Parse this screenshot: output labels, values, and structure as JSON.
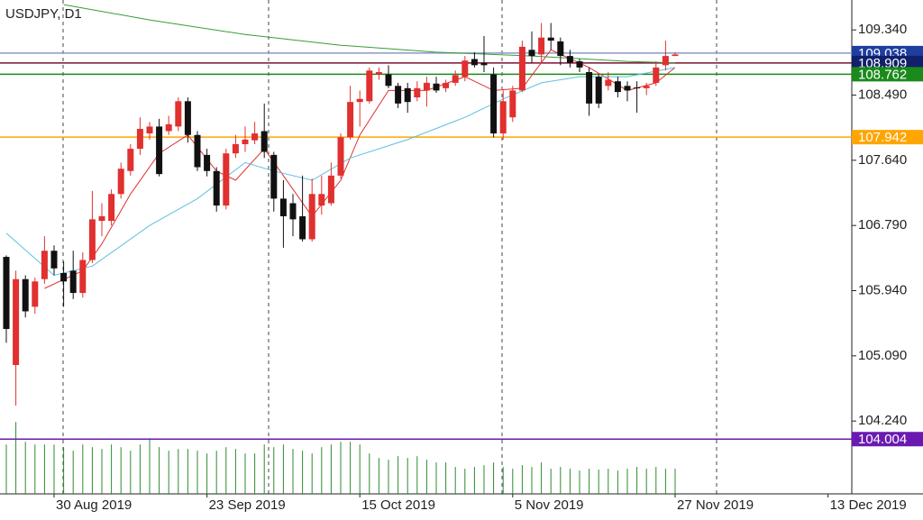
{
  "chart_data": {
    "type": "candlestick",
    "title": "USDJPY, D1",
    "categories": [
      null,
      null,
      null,
      null,
      null,
      "30 Aug 2019",
      null,
      null,
      null,
      null,
      null,
      null,
      null,
      null,
      null,
      null,
      null,
      null,
      null,
      null,
      null,
      "23 Sep 2019",
      null,
      null,
      null,
      null,
      null,
      null,
      null,
      null,
      null,
      null,
      null,
      null,
      null,
      null,
      null,
      "15 Oct 2019",
      null,
      null,
      null,
      null,
      null,
      null,
      null,
      null,
      null,
      null,
      null,
      null,
      null,
      null,
      null,
      "5 Nov 2019",
      null,
      null,
      null,
      null,
      null,
      null,
      null,
      null,
      null,
      null,
      null,
      null,
      null,
      null,
      null,
      null,
      "27 Nov 2019",
      null,
      null,
      null,
      null,
      null,
      null,
      null,
      null,
      null,
      null,
      null,
      null,
      null,
      null,
      null,
      "13 Dec 2019",
      null
    ],
    "open": [
      106.38,
      104.97,
      106.09,
      105.73,
      106.09,
      106.46,
      106.17,
      106.2,
      105.91,
      106.34,
      106.85,
      106.85,
      107.2,
      107.5,
      107.79,
      107.99,
      108.08,
      108.02,
      108.08,
      108.41,
      107.97,
      107.71,
      107.5,
      107.05,
      107.73,
      107.85,
      107.9,
      108.02,
      107.71,
      107.14,
      107.08,
      106.91,
      106.61,
      107.05,
      107.08,
      107.44,
      107.94,
      108.4,
      108.41,
      108.76,
      108.76,
      108.61,
      108.58,
      108.46,
      108.55,
      108.64,
      108.58,
      108.65,
      108.73,
      108.96,
      108.91,
      108.76,
      107.99,
      108.2,
      108.55,
      109.08,
      109.02,
      109.24,
      109.19,
      109.0,
      108.93,
      108.79,
      108.73,
      108.61,
      108.67,
      108.61,
      108.59,
      108.58,
      108.65,
      108.88,
      109.0,
      null,
      null,
      null,
      null,
      null,
      null,
      null,
      null,
      null,
      null,
      null,
      null,
      null,
      null,
      null,
      null,
      null
    ],
    "high": [
      106.4,
      106.2,
      106.14,
      106.11,
      106.65,
      106.53,
      106.32,
      106.46,
      106.44,
      107.24,
      107.08,
      107.26,
      107.61,
      107.85,
      108.2,
      108.14,
      108.18,
      108.22,
      108.46,
      108.46,
      108.02,
      107.79,
      107.55,
      107.79,
      107.97,
      108.08,
      108.14,
      108.38,
      107.75,
      107.38,
      107.2,
      107.44,
      107.4,
      107.44,
      107.61,
      107.99,
      108.61,
      108.55,
      108.85,
      108.85,
      108.88,
      108.65,
      108.65,
      108.67,
      108.73,
      108.73,
      108.69,
      108.81,
      109.0,
      109.05,
      109.26,
      108.85,
      108.55,
      108.61,
      109.2,
      109.32,
      109.43,
      109.43,
      109.24,
      109.08,
      108.96,
      108.85,
      108.76,
      108.79,
      108.73,
      108.67,
      108.67,
      108.65,
      108.93,
      109.2,
      109.05,
      null,
      null,
      null,
      null,
      null,
      null,
      null,
      null,
      null,
      null,
      null,
      null,
      null,
      null,
      null,
      null,
      null
    ],
    "low": [
      105.26,
      104.44,
      105.59,
      105.64,
      106.03,
      106.14,
      105.73,
      105.83,
      105.85,
      106.3,
      106.65,
      106.79,
      107.14,
      107.44,
      107.71,
      107.91,
      107.43,
      107.97,
      108.02,
      107.87,
      107.5,
      107.43,
      106.97,
      107.0,
      107.67,
      107.75,
      107.85,
      107.67,
      106.97,
      106.5,
      106.65,
      106.58,
      106.58,
      106.93,
      107.05,
      107.4,
      107.91,
      108.08,
      108.38,
      108.69,
      108.58,
      108.32,
      108.26,
      108.41,
      108.34,
      108.52,
      108.53,
      108.61,
      108.67,
      108.85,
      108.79,
      107.94,
      107.91,
      108.14,
      108.53,
      108.91,
      108.91,
      109.08,
      108.88,
      108.85,
      108.79,
      108.22,
      108.32,
      108.55,
      108.46,
      108.41,
      108.26,
      108.49,
      108.61,
      108.81,
      109.0,
      null,
      null,
      null,
      null,
      null,
      null,
      null,
      null,
      null,
      null,
      null,
      null,
      null,
      null,
      null,
      null,
      null
    ],
    "close": [
      105.44,
      106.09,
      105.67,
      106.06,
      106.46,
      106.23,
      106.06,
      105.91,
      106.34,
      106.87,
      106.91,
      107.2,
      107.53,
      107.79,
      108.05,
      108.08,
      107.46,
      108.11,
      108.41,
      107.97,
      107.55,
      107.5,
      107.05,
      107.73,
      107.85,
      107.91,
      107.99,
      107.75,
      107.14,
      106.91,
      106.87,
      106.61,
      107.2,
      107.2,
      107.44,
      107.94,
      108.4,
      108.44,
      108.81,
      108.79,
      108.61,
      108.38,
      108.4,
      108.58,
      108.65,
      108.55,
      108.65,
      108.75,
      108.94,
      108.88,
      108.88,
      107.99,
      108.41,
      108.55,
      109.12,
      109.0,
      109.24,
      109.2,
      109.0,
      108.91,
      108.85,
      108.38,
      108.38,
      108.69,
      108.53,
      108.55,
      108.58,
      108.61,
      108.85,
      109.0,
      109.02,
      null,
      null,
      null,
      null,
      null,
      null,
      null,
      null,
      null,
      null,
      null,
      null,
      null,
      null,
      null,
      null,
      null
    ],
    "up_color": "#e0302f",
    "down_color": "#111111",
    "volume": [
      55,
      80,
      58,
      55,
      55,
      55,
      52,
      48,
      55,
      52,
      50,
      55,
      52,
      48,
      55,
      62,
      52,
      48,
      50,
      50,
      48,
      45,
      48,
      52,
      50,
      45,
      45,
      55,
      52,
      55,
      50,
      48,
      45,
      52,
      55,
      58,
      58,
      55,
      45,
      40,
      38,
      42,
      40,
      42,
      38,
      35,
      35,
      30,
      28,
      30,
      32,
      35,
      30,
      28,
      32,
      30,
      35,
      28,
      30,
      28,
      26,
      28,
      27,
      28,
      26,
      28,
      30,
      28,
      30,
      28,
      28,
      null,
      null,
      null,
      null,
      null,
      null,
      null,
      null,
      null,
      null,
      null,
      null,
      null,
      null,
      null,
      null,
      null
    ],
    "volume_color": "#2e8b2e",
    "volume_lim": [
      0,
      550
    ],
    "lines": [
      {
        "color": "#e0302f",
        "x": [
          4,
          8,
          10,
          13,
          16,
          19,
          22,
          24,
          27,
          29,
          32,
          35,
          37,
          40,
          44,
          48,
          51,
          54,
          57,
          61,
          65,
          68,
          70
        ],
        "values": [
          105.97,
          106.2,
          106.55,
          107.2,
          107.73,
          107.97,
          107.5,
          107.38,
          107.79,
          107.44,
          106.91,
          107.38,
          107.97,
          108.55,
          108.55,
          108.73,
          108.55,
          108.58,
          109.08,
          108.85,
          108.55,
          108.65,
          108.85
        ]
      },
      {
        "color": "#5bc0de",
        "x": [
          0,
          5,
          9,
          15,
          20,
          25,
          28,
          32,
          36,
          42,
          48,
          52,
          56,
          60,
          65,
          70
        ],
        "values": [
          106.69,
          106.14,
          106.26,
          106.79,
          107.14,
          107.61,
          107.5,
          107.38,
          107.67,
          107.91,
          108.2,
          108.44,
          108.65,
          108.73,
          108.73,
          108.85
        ]
      },
      {
        "color": "#3a9a3a",
        "x": [
          6,
          15,
          25,
          35,
          45,
          55,
          65,
          70
        ],
        "values": [
          109.67,
          109.47,
          109.28,
          109.14,
          109.05,
          109.0,
          108.93,
          108.91
        ]
      }
    ],
    "levels": [
      {
        "value": 109.038,
        "color": "#8a9ac8",
        "label_color": "#1f3f9f"
      },
      {
        "value": 108.909,
        "color": "#7a1030",
        "label_color": "#10206a"
      },
      {
        "value": 108.762,
        "color": "#1a8a1a",
        "label_color": "#1a8a1a"
      },
      {
        "value": 107.942,
        "color": "#ffa500",
        "label_color": "#ffa500"
      },
      {
        "value": 104.004,
        "color": "#6a1ab0",
        "label_color": "#6a1ab0"
      }
    ],
    "ylim": [
      103.29,
      109.73
    ],
    "yticks": [
      {
        "value": 109.34,
        "label": "109.340"
      },
      {
        "value": 108.49,
        "label": "108.490"
      },
      {
        "value": 107.64,
        "label": "107.640"
      },
      {
        "value": 106.79,
        "label": "106.790"
      },
      {
        "value": 105.94,
        "label": "105.940"
      },
      {
        "value": 105.09,
        "label": "105.090"
      },
      {
        "value": 104.24,
        "label": "104.240"
      }
    ]
  }
}
